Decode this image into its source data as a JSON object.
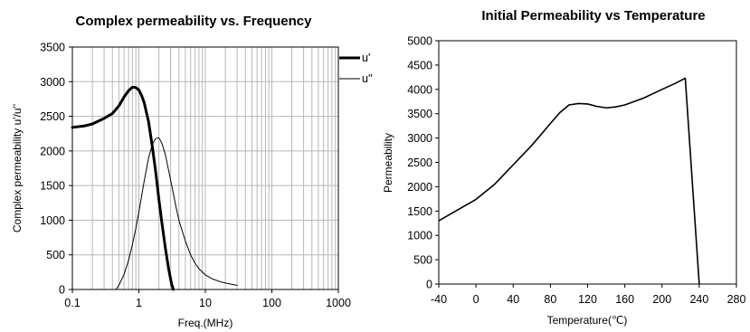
{
  "chart_data": [
    {
      "type": "line",
      "title": "Complex permeability vs. Frequency",
      "xlabel": "Freq.(MHz)",
      "ylabel": "Complex permeability u'/u''",
      "x_scale": "log",
      "xlim": [
        0.1,
        1000
      ],
      "ylim": [
        0,
        3500
      ],
      "x_ticks": [
        0.1,
        1,
        10,
        100,
        1000
      ],
      "x_tick_labels": [
        "0.1",
        "1",
        "10",
        "100",
        "1000"
      ],
      "y_ticks": [
        0,
        500,
        1000,
        1500,
        2000,
        2500,
        3000,
        3500
      ],
      "y_tick_labels": [
        "0",
        "500",
        "1000",
        "1500",
        "2000",
        "2500",
        "3000",
        "3500"
      ],
      "grid": true,
      "legend_position": "top-right",
      "series": [
        {
          "name": "u'",
          "color": "#000000",
          "style": "thick",
          "x": [
            0.1,
            0.15,
            0.2,
            0.3,
            0.4,
            0.5,
            0.6,
            0.7,
            0.8,
            0.9,
            1.0,
            1.1,
            1.2,
            1.4,
            1.6,
            1.8,
            2.0,
            2.2,
            2.5,
            2.8,
            3.1,
            3.3
          ],
          "y": [
            2340,
            2360,
            2390,
            2470,
            2540,
            2650,
            2780,
            2870,
            2920,
            2915,
            2880,
            2800,
            2700,
            2420,
            2050,
            1680,
            1300,
            990,
            600,
            300,
            80,
            0
          ]
        },
        {
          "name": "u''",
          "color": "#000000",
          "style": "thin",
          "x": [
            0.45,
            0.5,
            0.6,
            0.7,
            0.8,
            0.9,
            1.0,
            1.2,
            1.4,
            1.6,
            1.8,
            2.0,
            2.2,
            2.5,
            2.8,
            3.2,
            3.6,
            4.0,
            5.0,
            6.0,
            7.0,
            8.0,
            10.0,
            13.0,
            17.0,
            22.0,
            30.0
          ],
          "y": [
            0,
            60,
            220,
            420,
            650,
            880,
            1120,
            1560,
            1900,
            2100,
            2180,
            2190,
            2120,
            1950,
            1720,
            1450,
            1200,
            1000,
            700,
            500,
            380,
            300,
            210,
            150,
            110,
            85,
            60
          ]
        }
      ]
    },
    {
      "type": "line",
      "title": "Initial Permeability vs Temperature",
      "xlabel": "Temperature(℃)",
      "ylabel": "Permeability",
      "xlim": [
        -40,
        280
      ],
      "ylim": [
        0,
        5000
      ],
      "x_ticks": [
        -40,
        0,
        40,
        80,
        120,
        160,
        200,
        240,
        280
      ],
      "x_tick_labels": [
        "-40",
        "0",
        "40",
        "80",
        "120",
        "160",
        "200",
        "240",
        "280"
      ],
      "y_ticks": [
        0,
        500,
        1000,
        1500,
        2000,
        2500,
        3000,
        3500,
        4000,
        4500,
        5000
      ],
      "y_tick_labels": [
        "0",
        "500",
        "1000",
        "1500",
        "2000",
        "2500",
        "3000",
        "3500",
        "4000",
        "4500",
        "5000"
      ],
      "grid": false,
      "series": [
        {
          "color": "#000000",
          "x": [
            -40,
            -20,
            0,
            20,
            40,
            60,
            80,
            90,
            100,
            110,
            120,
            130,
            140,
            150,
            160,
            180,
            200,
            215,
            225,
            240
          ],
          "y": [
            1300,
            1520,
            1740,
            2050,
            2450,
            2850,
            3300,
            3520,
            3680,
            3710,
            3700,
            3650,
            3620,
            3640,
            3680,
            3820,
            4000,
            4130,
            4230,
            0
          ]
        }
      ]
    }
  ]
}
